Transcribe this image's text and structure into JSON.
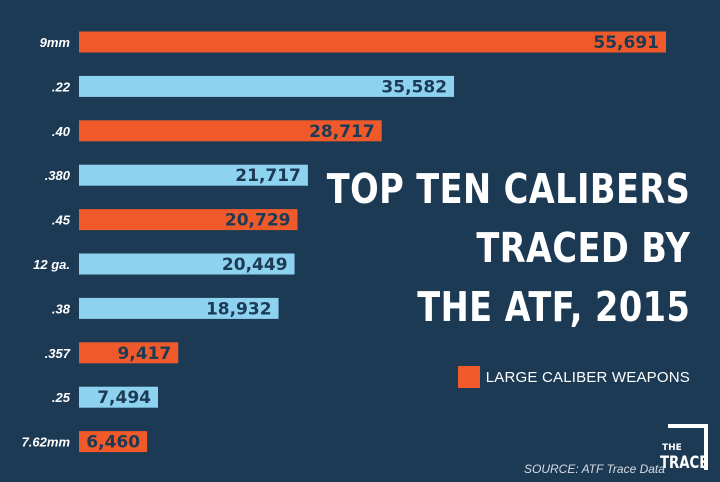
{
  "chart_data": {
    "type": "bar",
    "orientation": "horizontal",
    "title": "TOP TEN CALIBERS TRACED BY THE ATF, 2015",
    "title_lines": [
      "TOP TEN CALIBERS",
      "TRACED BY",
      "THE ATF, 2015"
    ],
    "categories": [
      "9mm",
      ".22",
      ".40",
      ".380",
      ".45",
      "12 ga.",
      ".38",
      ".357",
      ".25",
      "7.62mm"
    ],
    "values": [
      55691,
      35582,
      28717,
      21717,
      20729,
      20449,
      18932,
      9417,
      7494,
      6460
    ],
    "value_labels": [
      "55,691",
      "35,582",
      "28,717",
      "21,717",
      "20,729",
      "20,449",
      "18,932",
      "9,417",
      "7,494",
      "6,460"
    ],
    "large_caliber": [
      true,
      false,
      true,
      false,
      true,
      false,
      false,
      true,
      false,
      true
    ],
    "legend": [
      {
        "label": "LARGE CALIBER WEAPONS",
        "color": "#f05a2b"
      }
    ],
    "legend_position": "right",
    "xlim": [
      0,
      55691
    ],
    "grid": false,
    "colors": {
      "large": "#f05a2b",
      "other": "#8dd2ef",
      "background": "#1d3a55",
      "label_text": "#1d3a55"
    }
  },
  "source": "SOURCE: ATF Trace Data",
  "logo": {
    "small": "THE",
    "name": "TRACE"
  }
}
